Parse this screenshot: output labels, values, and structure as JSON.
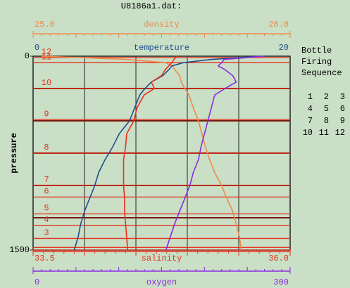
{
  "title": "U8186a1.dat:",
  "chart_data": {
    "type": "profile",
    "ylabel": "pressure",
    "ylim": [
      0,
      1500
    ],
    "yticks": [
      0,
      1500
    ],
    "grid_divisions": {
      "x": 5,
      "y": 6
    },
    "pressure": [
      0,
      25,
      50,
      75,
      100,
      150,
      200,
      250,
      300,
      400,
      500,
      600,
      700,
      800,
      900,
      1000,
      1100,
      1200,
      1300,
      1400,
      1500
    ],
    "series": [
      {
        "name": "density",
        "color": "#f08a4b",
        "position": "top-outer",
        "minor_divisions": 30,
        "xlim": [
          25,
          28
        ],
        "xticks": [
          {
            "value": 25,
            "label": "25.0"
          },
          {
            "value": 28,
            "label": "28.0"
          }
        ],
        "values": [
          25.1,
          26.09,
          26.54,
          26.63,
          26.65,
          26.71,
          26.73,
          26.77,
          26.82,
          26.87,
          26.93,
          26.97,
          27.01,
          27.06,
          27.12,
          27.2,
          27.26,
          27.33,
          27.37,
          27.41,
          27.43
        ]
      },
      {
        "name": "temperature",
        "color": "#1f4f8f",
        "position": "top-inner",
        "minor_divisions": 0,
        "xlim": [
          0,
          20
        ],
        "xticks": [
          0,
          20
        ],
        "values": [
          17.8,
          13.9,
          11.7,
          10.8,
          10.6,
          10.1,
          9.2,
          8.7,
          8.3,
          7.9,
          7.5,
          6.7,
          6.2,
          5.6,
          5.1,
          4.8,
          4.4,
          4.0,
          3.7,
          3.5,
          3.2
        ]
      },
      {
        "name": "salinity",
        "color": "#e8321e",
        "position": "bottom-inner",
        "minor_divisions": 25,
        "xlim": [
          33.5,
          36
        ],
        "xticks": [
          33.5,
          {
            "value": 36,
            "label": "36.0"
          }
        ],
        "values": [
          34.9,
          34.87,
          34.85,
          34.82,
          34.79,
          34.75,
          34.65,
          34.68,
          34.58,
          34.51,
          34.48,
          34.41,
          34.4,
          34.38,
          34.38,
          34.38,
          34.39,
          34.39,
          34.4,
          34.41,
          34.42
        ]
      },
      {
        "name": "oxygen",
        "color": "#8a2be2",
        "position": "bottom-outer",
        "minor_divisions": 30,
        "xlim": [
          0,
          300
        ],
        "xticks": [
          0,
          300
        ],
        "values": [
          270,
          223,
          220,
          216,
          223,
          233,
          237,
          224,
          212,
          208,
          204,
          200,
          196,
          193,
          187,
          183,
          177,
          171,
          165,
          160,
          155
        ]
      }
    ],
    "bottles": {
      "color": "#e8321e",
      "labels": [
        null,
        null,
        "3",
        "4",
        "5",
        "6",
        "7",
        "8",
        "9",
        "10",
        "11",
        "12"
      ],
      "pressures": [
        1500,
        1480,
        1410,
        1310,
        1220,
        1090,
        1000,
        750,
        490,
        250,
        50,
        10
      ]
    }
  },
  "sequence": {
    "title": [
      "Bottle",
      "Firing",
      "Sequence"
    ],
    "rows": [
      [
        "1",
        "2",
        "3"
      ],
      [
        "4",
        "5",
        "6"
      ],
      [
        "7",
        "8",
        "9"
      ],
      [
        "10",
        "11",
        "12"
      ]
    ]
  }
}
